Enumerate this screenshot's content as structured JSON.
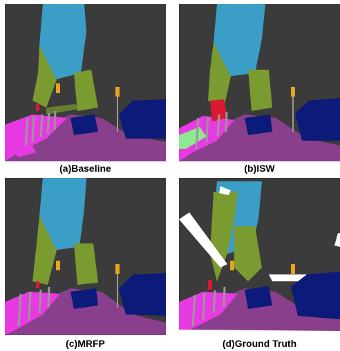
{
  "panels": [
    {
      "id": "a",
      "caption": "(a)Baseline"
    },
    {
      "id": "b",
      "caption": "(b)ISW"
    },
    {
      "id": "c",
      "caption": "(c)MRFP"
    },
    {
      "id": "d",
      "caption": "(d)Ground Truth"
    }
  ],
  "palette": {
    "background": "#3b3b3b",
    "sky": "#3b9ec7",
    "vegetation": "#7a9b2f",
    "road": "#8a3f8c",
    "sidewalk": "#e83ae2",
    "car": "#0c1a7a",
    "pole": "#999999",
    "traffic_light": "#e6a41d",
    "person": "#d8192e",
    "terrain": "#8fe88f",
    "white": "#ffffff"
  }
}
